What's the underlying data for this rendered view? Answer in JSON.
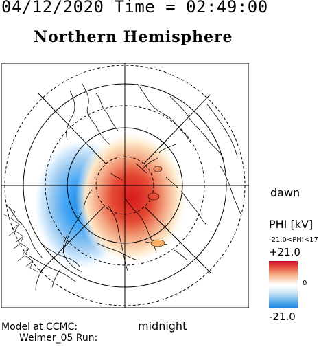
{
  "header": "04/12/2020 Time = 02:49:00",
  "hemisphere": "Northern Hemisphere",
  "labels": {
    "dawn": "dawn",
    "midnight": "midnight"
  },
  "colorbar": {
    "title": "PHI [kV]",
    "range_text": "-21.0<PHI<17",
    "max_label": "+21.0",
    "mid_label": "0",
    "min_label": "-21.0",
    "colors": {
      "positive": "#d7191c",
      "negative": "#1e88e5",
      "neutral": "#ffffff"
    }
  },
  "model": {
    "line1": "Model at CCMC:",
    "line2": "Weimer_05 Run:"
  }
}
